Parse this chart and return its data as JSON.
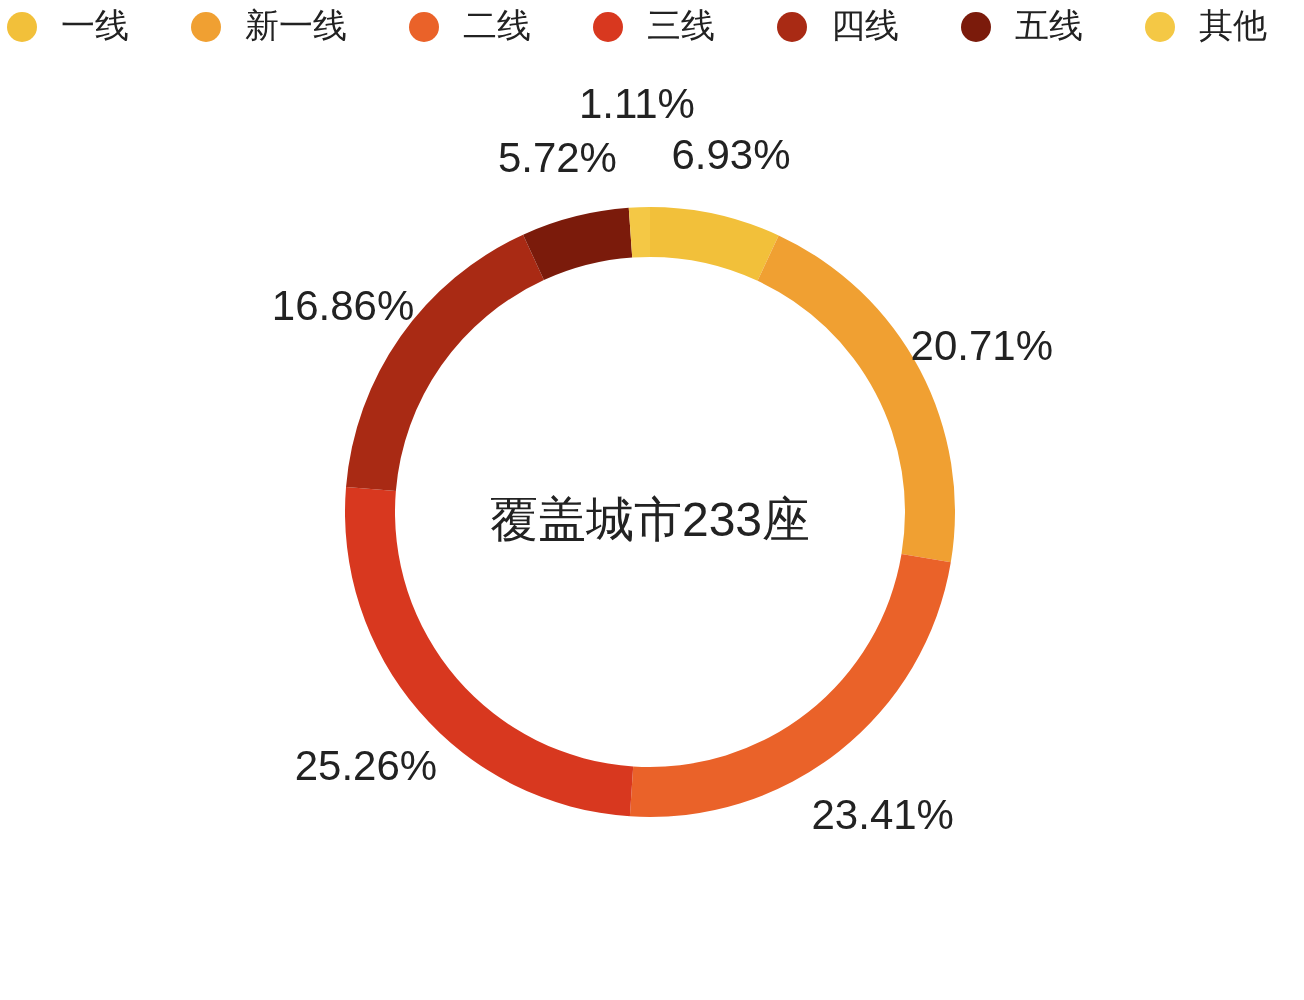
{
  "chart_data": {
    "type": "donut",
    "title": "覆盖城市233座",
    "categories": [
      "一线",
      "新一线",
      "二线",
      "三线",
      "四线",
      "五线",
      "其他"
    ],
    "values": [
      6.93,
      20.71,
      23.41,
      25.26,
      16.86,
      5.72,
      1.11
    ],
    "colors": [
      "#f2c03a",
      "#f0a032",
      "#ea6229",
      "#d8381f",
      "#a92a14",
      "#7b1b0b",
      "#f4c845"
    ],
    "value_labels": [
      "6.93%",
      "20.71%",
      "23.41%",
      "25.26%",
      "16.86%",
      "5.72%",
      "1.11%"
    ],
    "legend": "top"
  }
}
